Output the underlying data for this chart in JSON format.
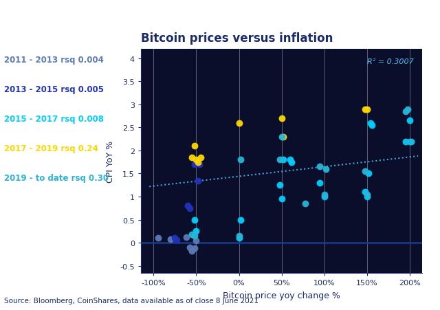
{
  "title": "Bitcoin prices versus inflation",
  "xlabel": "Bitcoin price yoy change %",
  "ylabel": "CPI YoY %",
  "source": "Source: Bloomberg, CoinShares, data available as of close 8 June 2021",
  "rsq_annotation": "R² = 0.3007",
  "background_color": "#ffffff",
  "plot_bg_color": "#0a0e2a",
  "text_color": "#ffffff",
  "axis_label_color": "#1a2a6a",
  "tick_color": "#1a2a6a",
  "title_color": "#1a2a6a",
  "source_color": "#1a2a6a",
  "vline_color": "#ffffff",
  "hline_color": "#1a3a8a",
  "trendline_color": "#4fc3f7",
  "xlim": [
    -1.15,
    2.15
  ],
  "ylim": [
    -0.65,
    4.2
  ],
  "xticks": [
    -1.0,
    -0.5,
    0.0,
    0.5,
    1.0,
    1.5,
    2.0
  ],
  "yticks": [
    -0.5,
    0.0,
    0.5,
    1.0,
    1.5,
    2.0,
    2.5,
    3.0,
    3.5,
    4.0
  ],
  "vlines": [
    -1.0,
    -0.5,
    0.0,
    0.5,
    1.0,
    1.5,
    2.0
  ],
  "series": [
    {
      "name": "2011 - 2013 rsq 0.004",
      "color": "#5a7ab8",
      "x": [
        -0.95,
        -0.8,
        -0.62,
        -0.58,
        -0.55,
        -0.52,
        -0.5
      ],
      "y": [
        0.1,
        0.08,
        0.12,
        -0.1,
        -0.18,
        -0.12,
        0.05
      ]
    },
    {
      "name": "2013 - 2015 rsq 0.005",
      "color": "#2233bb",
      "x": [
        -0.75,
        -0.73,
        -0.6,
        -0.58,
        -0.52,
        -0.5,
        -0.48,
        -0.46
      ],
      "y": [
        0.1,
        0.06,
        0.8,
        0.75,
        1.7,
        1.72,
        1.35,
        1.7
      ]
    },
    {
      "name": "2015 - 2017 rsq 0.008",
      "color": "#00cfff",
      "x": [
        -0.52,
        -0.5,
        0.0,
        0.02,
        0.48,
        0.5,
        0.52,
        0.6,
        0.62,
        0.95,
        1.0,
        1.48,
        1.5,
        1.52,
        1.54,
        1.56,
        1.95,
        2.0,
        2.02
      ],
      "y": [
        0.5,
        0.25,
        0.1,
        0.5,
        1.25,
        0.95,
        1.8,
        1.8,
        1.75,
        1.3,
        1.0,
        1.1,
        1.0,
        1.5,
        2.6,
        2.55,
        2.2,
        2.65,
        2.2
      ]
    },
    {
      "name": "2017 - 2019 rsq 0.24",
      "color": "#ffd700",
      "x": [
        -0.55,
        -0.52,
        -0.5,
        -0.48,
        -0.45,
        0.0,
        0.5,
        0.52,
        1.48,
        1.5
      ],
      "y": [
        1.85,
        2.1,
        1.8,
        1.75,
        1.85,
        2.6,
        2.7,
        2.3,
        2.9,
        2.9
      ]
    },
    {
      "name": "2019 - to date rsq 0.30",
      "color": "#29b6d8",
      "x": [
        -0.55,
        -0.52,
        0.0,
        0.02,
        0.48,
        0.5,
        0.78,
        0.95,
        1.0,
        1.02,
        1.48,
        1.5,
        1.95,
        1.98,
        2.0
      ],
      "y": [
        0.18,
        0.15,
        0.15,
        1.8,
        1.8,
        2.3,
        0.85,
        1.65,
        1.05,
        1.6,
        1.55,
        1.05,
        2.85,
        2.9,
        2.2
      ]
    }
  ],
  "trendline_x": [
    -1.05,
    2.1
  ],
  "trendline_y": [
    1.22,
    1.88
  ],
  "legend_colors": [
    "#5a7ab8",
    "#2233bb",
    "#00cfff",
    "#ffd700",
    "#29b6d8"
  ],
  "legend_labels": [
    "2011 - 2013 rsq 0.004",
    "2013 - 2015 rsq 0.005",
    "2015 - 2017 rsq 0.008",
    "2017 - 2019 rsq 0.24",
    "2019 - to date rsq 0.30"
  ]
}
